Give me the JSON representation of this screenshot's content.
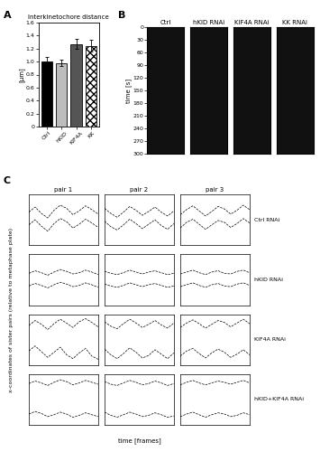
{
  "panel_labels": [
    "A",
    "B",
    "C"
  ],
  "chart_data": [
    {
      "type": "bar",
      "title": "Interkinetochore distance",
      "y_label": "[μm]",
      "categories": [
        "Ctrl",
        "hKID",
        "KIF4A",
        "KK"
      ],
      "values": [
        1.0,
        0.98,
        1.27,
        1.24
      ],
      "errors": [
        0.07,
        0.05,
        0.08,
        0.09
      ],
      "colors": [
        "#000000",
        "#bdbdbd",
        "#555555",
        "#ffffff"
      ],
      "ylim": [
        0,
        1.6
      ],
      "yticks": [
        0,
        0.2,
        0.4,
        0.6,
        0.8,
        1.0,
        1.2,
        1.4,
        1.6
      ]
    }
  ],
  "kymographs": {
    "y_label": "time [s]",
    "ylim": [
      300,
      0
    ],
    "yticks": [
      0,
      30,
      60,
      90,
      120,
      150,
      180,
      210,
      240,
      270,
      300
    ],
    "panels": [
      "Ctrl",
      "hKID RNAi",
      "KIF4A RNAi",
      "KK RNAi"
    ]
  },
  "traces": {
    "type": "line",
    "x_label": "time [frames]",
    "y_label": "x-coordinates of sister pairs (relative to metaphase plate)",
    "columns": [
      "pair 1",
      "pair 2",
      "pair 3"
    ],
    "x": [
      0,
      1,
      2,
      3,
      4,
      5,
      6,
      7,
      8,
      9,
      10,
      11
    ],
    "xlim": [
      0,
      11
    ],
    "ylim": [
      -4,
      4
    ],
    "tick_labels": false,
    "color": "#000000",
    "rows": [
      {
        "label": "Ctrl RNAi",
        "pairs": [
          [
            [
              1.2,
              2.0,
              1.0,
              0.3,
              1.5,
              2.3,
              1.8,
              0.8,
              1.4,
              2.2,
              1.6,
              0.9
            ],
            [
              -0.8,
              0.0,
              -1.0,
              -1.8,
              -0.6,
              0.2,
              -0.3,
              -1.3,
              -0.7,
              0.1,
              -0.5,
              -1.2
            ]
          ],
          [
            [
              1.8,
              1.0,
              0.4,
              1.2,
              2.1,
              1.5,
              0.7,
              1.3,
              2.0,
              1.2,
              0.6,
              1.4
            ],
            [
              -0.2,
              -1.1,
              -1.6,
              -0.8,
              0.1,
              -0.6,
              -1.4,
              -0.7,
              0.0,
              -0.9,
              -1.5,
              -0.6
            ]
          ],
          [
            [
              0.8,
              1.6,
              2.2,
              1.4,
              0.6,
              1.3,
              2.1,
              1.7,
              0.9,
              1.5,
              2.3,
              1.6
            ],
            [
              -1.3,
              -0.4,
              0.1,
              -0.7,
              -1.5,
              -0.8,
              -0.1,
              -0.4,
              -1.2,
              -0.6,
              0.2,
              -0.5
            ]
          ]
        ]
      },
      {
        "label": "hKID RNAi",
        "pairs": [
          [
            [
              1.0,
              1.4,
              1.1,
              0.7,
              1.2,
              1.6,
              1.3,
              0.9,
              1.1,
              1.5,
              1.2,
              0.8
            ],
            [
              -1.0,
              -0.6,
              -0.9,
              -1.3,
              -0.8,
              -0.4,
              -0.7,
              -1.1,
              -0.9,
              -0.5,
              -0.8,
              -1.2
            ]
          ],
          [
            [
              1.3,
              1.0,
              0.8,
              1.1,
              1.5,
              1.2,
              0.9,
              1.2,
              1.4,
              1.1,
              0.8,
              1.0
            ],
            [
              -0.7,
              -1.0,
              -1.2,
              -0.9,
              -0.5,
              -0.8,
              -1.1,
              -0.8,
              -0.6,
              -0.9,
              -1.2,
              -1.0
            ]
          ],
          [
            [
              0.9,
              1.2,
              1.5,
              1.1,
              0.8,
              1.2,
              1.4,
              1.0,
              0.9,
              1.3,
              1.5,
              1.1
            ],
            [
              -1.1,
              -0.8,
              -0.5,
              -0.9,
              -1.2,
              -0.8,
              -0.6,
              -1.0,
              -1.1,
              -0.7,
              -0.5,
              -0.9
            ]
          ]
        ]
      },
      {
        "label": "KIF4A RNAi",
        "pairs": [
          [
            [
              2.2,
              3.0,
              2.4,
              1.6,
              2.5,
              3.2,
              2.6,
              1.9,
              2.8,
              3.3,
              2.7,
              2.0
            ],
            [
              -1.8,
              -1.0,
              -1.9,
              -2.8,
              -2.0,
              -1.2,
              -2.4,
              -3.0,
              -2.1,
              -1.4,
              -2.6,
              -3.1
            ]
          ],
          [
            [
              2.8,
              2.1,
              1.7,
              2.5,
              3.2,
              2.6,
              1.9,
              2.4,
              3.0,
              2.3,
              1.8,
              2.6
            ],
            [
              -1.5,
              -2.4,
              -3.0,
              -2.2,
              -1.3,
              -2.0,
              -2.9,
              -2.5,
              -1.6,
              -2.3,
              -3.0,
              -2.1
            ]
          ],
          [
            [
              1.9,
              2.6,
              3.1,
              2.5,
              1.8,
              2.4,
              3.0,
              2.7,
              2.0,
              2.6,
              3.2,
              2.5
            ],
            [
              -2.6,
              -1.8,
              -1.4,
              -2.2,
              -2.9,
              -2.1,
              -1.5,
              -2.0,
              -2.8,
              -2.3,
              -1.6,
              -2.4
            ]
          ]
        ]
      },
      {
        "label": "hKID+KIF4A RNAi",
        "pairs": [
          [
            [
              2.5,
              2.9,
              2.6,
              2.2,
              2.7,
              3.1,
              2.8,
              2.3,
              2.6,
              3.0,
              2.7,
              2.4
            ],
            [
              -2.3,
              -1.9,
              -2.2,
              -2.7,
              -2.4,
              -2.0,
              -2.3,
              -2.8,
              -2.5,
              -2.1,
              -2.4,
              -2.7
            ]
          ],
          [
            [
              2.8,
              2.4,
              2.2,
              2.6,
              3.0,
              2.7,
              2.3,
              2.5,
              2.9,
              2.6,
              2.2,
              2.5
            ],
            [
              -2.0,
              -2.5,
              -2.8,
              -2.4,
              -2.0,
              -2.3,
              -2.7,
              -2.5,
              -2.1,
              -2.4,
              -2.8,
              -2.6
            ]
          ],
          [
            [
              2.3,
              2.7,
              3.0,
              2.6,
              2.3,
              2.6,
              2.9,
              2.7,
              2.4,
              2.7,
              3.0,
              2.6
            ],
            [
              -2.7,
              -2.3,
              -2.0,
              -2.4,
              -2.8,
              -2.4,
              -2.1,
              -2.3,
              -2.7,
              -2.5,
              -2.1,
              -2.4
            ]
          ]
        ]
      }
    ]
  }
}
